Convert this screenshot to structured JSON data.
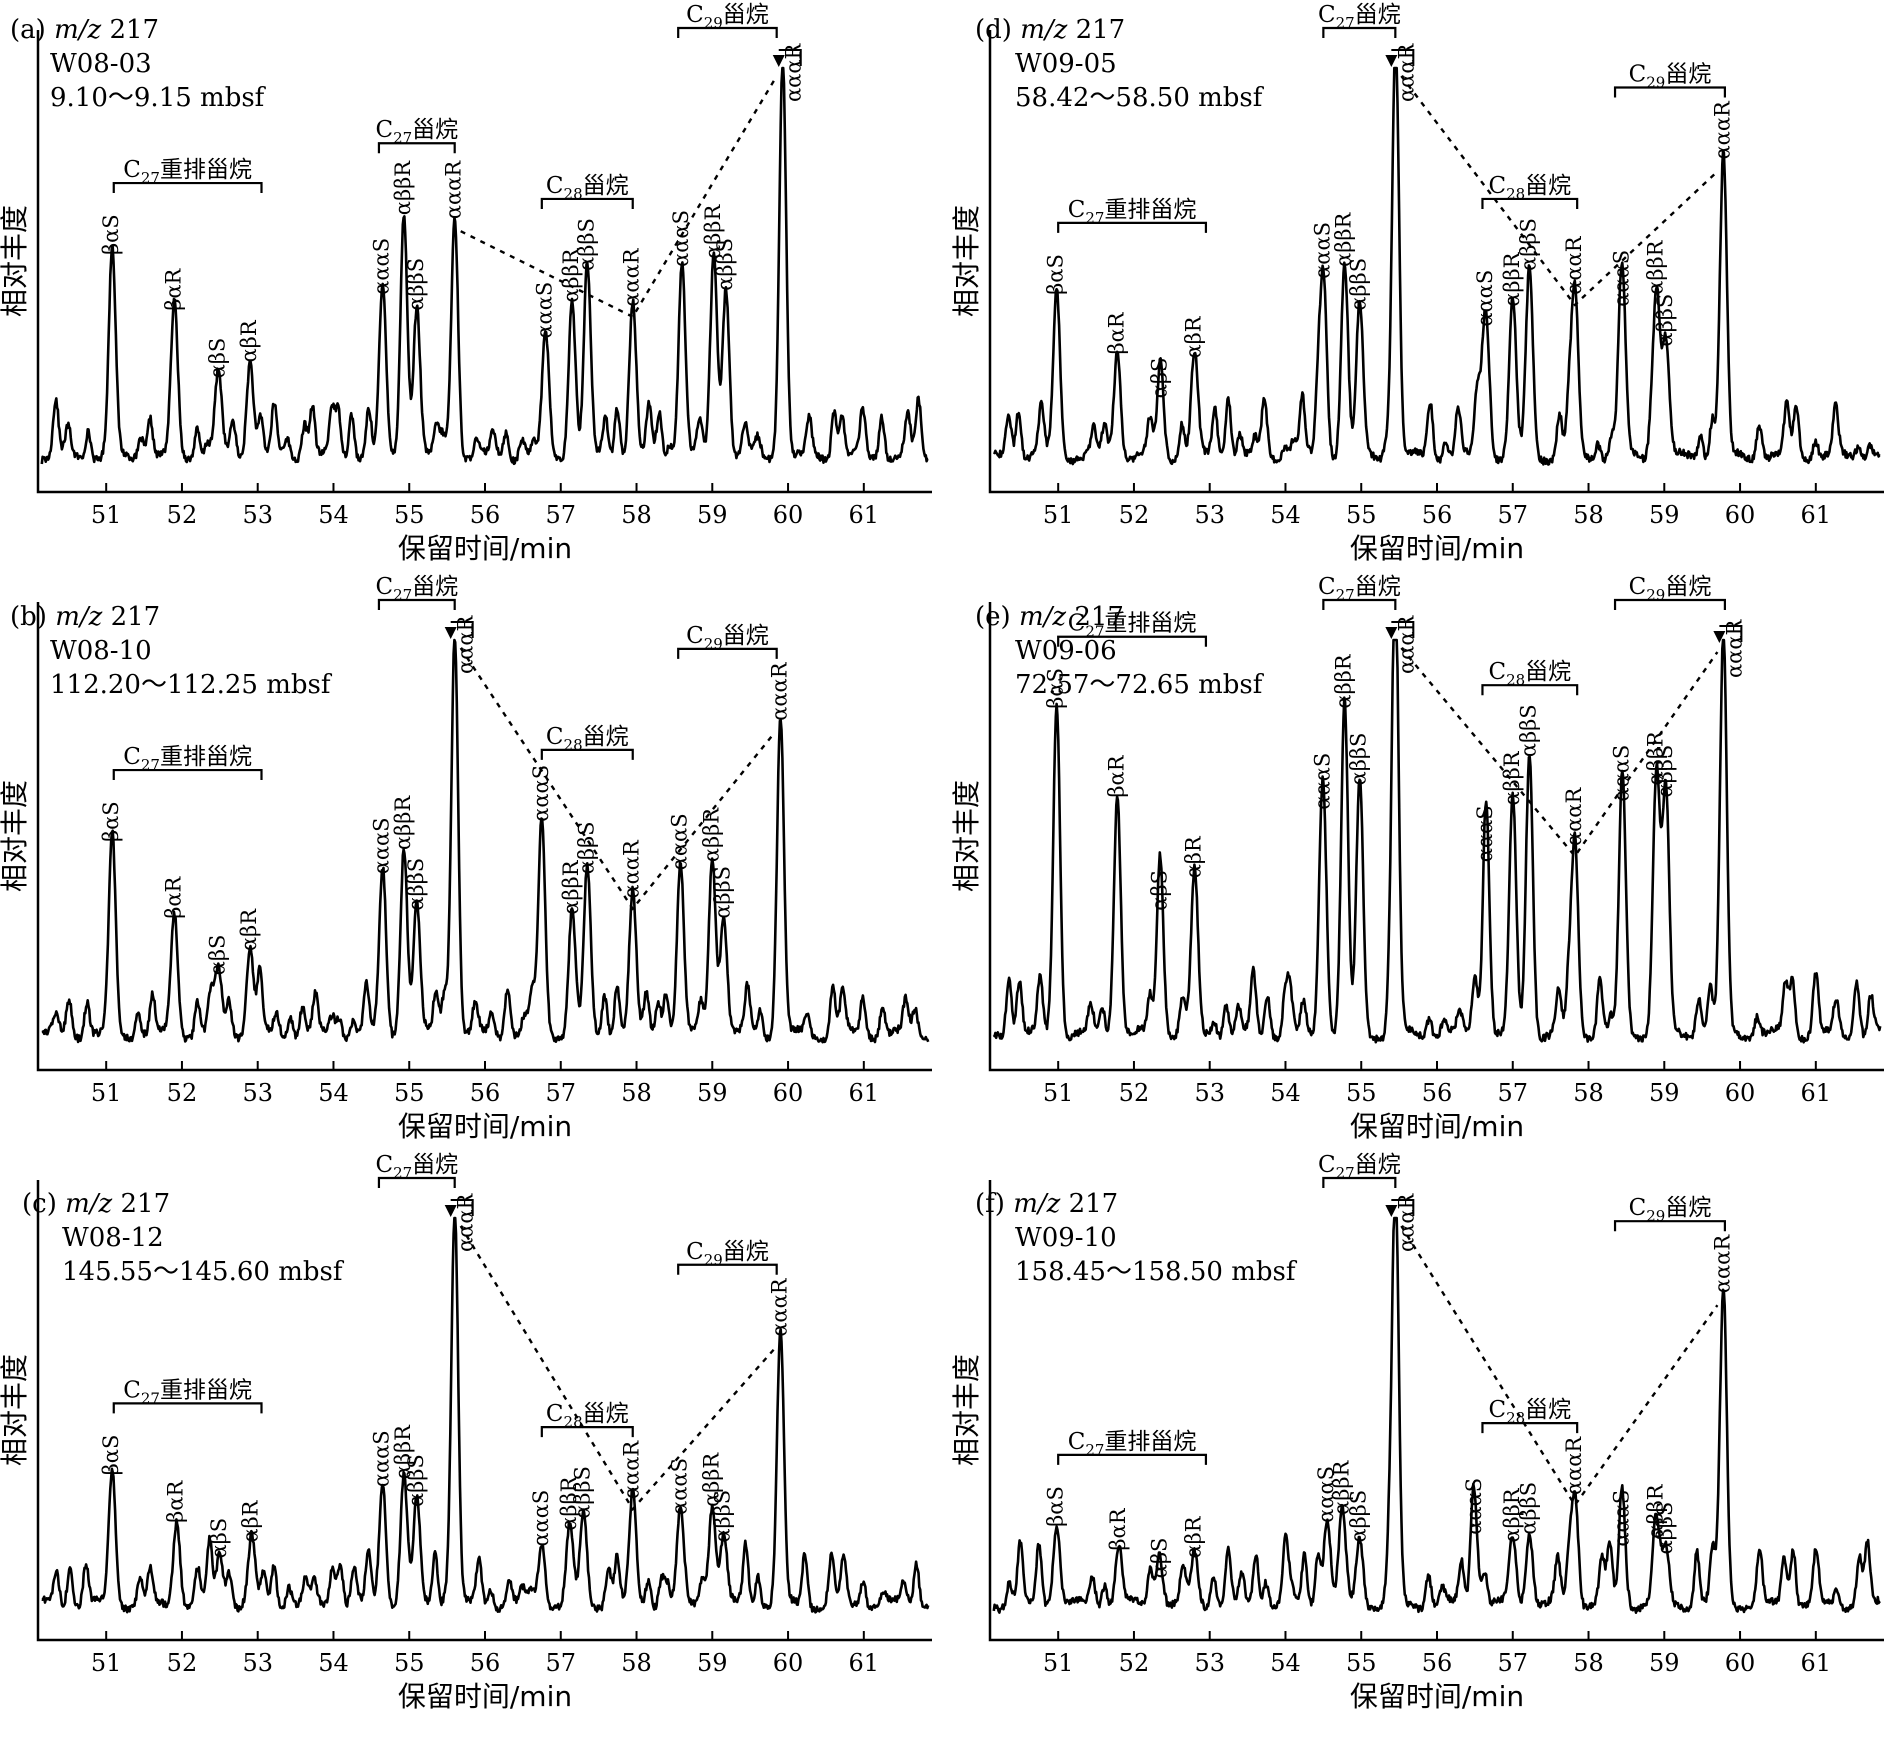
{
  "chart_data": [
    {
      "type": "line",
      "panel_label": "(a)",
      "ion": "m/z 217",
      "sample": "W08-03",
      "depth": "9.10～9.15 mbsf",
      "xlabel": "保留时间/min",
      "ylabel": "相对丰度",
      "xlim": [
        50.1,
        61.9
      ],
      "ylim": [
        0,
        100
      ],
      "xticks": [
        51,
        52,
        53,
        54,
        55,
        56,
        57,
        58,
        59,
        60,
        61
      ],
      "peaks": [
        {
          "label": "βαS",
          "x": 51.08,
          "y": 52
        },
        {
          "label": "βαR",
          "x": 51.9,
          "y": 38
        },
        {
          "label": "αβS",
          "x": 52.48,
          "y": 21
        },
        {
          "label": "αβR",
          "x": 52.9,
          "y": 25
        },
        {
          "label": "αααS",
          "x": 54.65,
          "y": 42
        },
        {
          "label": "αββR",
          "x": 54.93,
          "y": 62
        },
        {
          "label": "αββS",
          "x": 55.1,
          "y": 38
        },
        {
          "label": "αααR",
          "x": 55.6,
          "y": 61
        },
        {
          "label": "αααS",
          "x": 56.8,
          "y": 31
        },
        {
          "label": "αββR",
          "x": 57.15,
          "y": 40
        },
        {
          "label": "αββS",
          "x": 57.35,
          "y": 48
        },
        {
          "label": "αααR",
          "x": 57.95,
          "y": 39
        },
        {
          "label": "αααS",
          "x": 58.6,
          "y": 49
        },
        {
          "label": "αββR",
          "x": 59.02,
          "y": 51
        },
        {
          "label": "αββS",
          "x": 59.18,
          "y": 43
        },
        {
          "label": "αααR",
          "x": 59.93,
          "y": 100
        }
      ],
      "groups": [
        {
          "label": "C27重排甾烷",
          "sub": "27",
          "x": [
            51.1,
            53.05
          ]
        },
        {
          "label": "C27甾烷",
          "sub": "27",
          "x": [
            54.6,
            55.6
          ]
        },
        {
          "label": "C28甾烷",
          "sub": "28",
          "x": [
            56.75,
            57.95
          ]
        },
        {
          "label": "C29甾烷",
          "sub": "29",
          "x": [
            58.55,
            59.85
          ]
        }
      ]
    },
    {
      "type": "line",
      "panel_label": "(b)",
      "ion": "m/z 217",
      "sample": "W08-10",
      "depth": "112.20～112.25 mbsf",
      "xlabel": "保留时间/min",
      "ylabel": "相对丰度",
      "xlim": [
        50.1,
        61.9
      ],
      "ylim": [
        0,
        100
      ],
      "xticks": [
        51,
        52,
        53,
        54,
        55,
        56,
        57,
        58,
        59,
        60,
        61
      ],
      "peaks": [
        {
          "label": "βαS",
          "x": 51.08,
          "y": 49
        },
        {
          "label": "βαR",
          "x": 51.9,
          "y": 30
        },
        {
          "label": "αβS",
          "x": 52.48,
          "y": 16
        },
        {
          "label": "αβR",
          "x": 52.9,
          "y": 22
        },
        {
          "label": "αααS",
          "x": 54.65,
          "y": 41
        },
        {
          "label": "αββR",
          "x": 54.93,
          "y": 47
        },
        {
          "label": "αββS",
          "x": 55.1,
          "y": 32
        },
        {
          "label": "αααR",
          "x": 55.6,
          "y": 100
        },
        {
          "label": "αααS",
          "x": 56.75,
          "y": 54
        },
        {
          "label": "αββR",
          "x": 57.15,
          "y": 31
        },
        {
          "label": "αββS",
          "x": 57.35,
          "y": 41
        },
        {
          "label": "αααR",
          "x": 57.95,
          "y": 35
        },
        {
          "label": "αααS",
          "x": 58.58,
          "y": 42
        },
        {
          "label": "αββR",
          "x": 59.0,
          "y": 44
        },
        {
          "label": "αββS",
          "x": 59.15,
          "y": 30
        },
        {
          "label": "αααR",
          "x": 59.9,
          "y": 79
        }
      ],
      "groups": [
        {
          "label": "C27重排甾烷",
          "sub": "27",
          "x": [
            51.1,
            53.05
          ]
        },
        {
          "label": "C27甾烷",
          "sub": "27",
          "x": [
            54.6,
            55.6
          ]
        },
        {
          "label": "C28甾烷",
          "sub": "28",
          "x": [
            56.75,
            57.95
          ]
        },
        {
          "label": "C29甾烷",
          "sub": "29",
          "x": [
            58.55,
            59.85
          ]
        }
      ]
    },
    {
      "type": "line",
      "panel_label": "(c)",
      "ion": "m/z 217",
      "sample": "W08-12",
      "depth": "145.55～145.60 mbsf",
      "xlabel": "保留时间/min",
      "ylabel": "相对丰度",
      "xlim": [
        50.1,
        61.9
      ],
      "ylim": [
        0,
        100
      ],
      "xticks": [
        51,
        52,
        53,
        54,
        55,
        56,
        57,
        58,
        59,
        60,
        61
      ],
      "peaks": [
        {
          "label": "βαS",
          "x": 51.08,
          "y": 34
        },
        {
          "label": "βαR",
          "x": 51.93,
          "y": 22
        },
        {
          "label": "αβS",
          "x": 52.5,
          "y": 13
        },
        {
          "label": "αβR",
          "x": 52.92,
          "y": 17
        },
        {
          "label": "αααS",
          "x": 54.65,
          "y": 31
        },
        {
          "label": "αββR",
          "x": 54.93,
          "y": 33
        },
        {
          "label": "αββS",
          "x": 55.1,
          "y": 26
        },
        {
          "label": "αααR",
          "x": 55.6,
          "y": 100
        },
        {
          "label": "αααS",
          "x": 56.75,
          "y": 16
        },
        {
          "label": "αββR",
          "x": 57.12,
          "y": 20
        },
        {
          "label": "αββS",
          "x": 57.3,
          "y": 23
        },
        {
          "label": "αααR",
          "x": 57.95,
          "y": 28
        },
        {
          "label": "αααS",
          "x": 58.58,
          "y": 24
        },
        {
          "label": "αββR",
          "x": 59.0,
          "y": 26
        },
        {
          "label": "αββS",
          "x": 59.15,
          "y": 17
        },
        {
          "label": "αααR",
          "x": 59.9,
          "y": 69
        }
      ],
      "groups": [
        {
          "label": "C27重排甾烷",
          "sub": "27",
          "x": [
            51.1,
            53.05
          ]
        },
        {
          "label": "C27甾烷",
          "sub": "27",
          "x": [
            54.6,
            55.6
          ]
        },
        {
          "label": "C28甾烷",
          "sub": "28",
          "x": [
            56.75,
            57.95
          ]
        },
        {
          "label": "C29甾烷",
          "sub": "29",
          "x": [
            58.55,
            59.85
          ]
        }
      ]
    },
    {
      "type": "line",
      "panel_label": "(d)",
      "ion": "m/z 217",
      "sample": "W09-05",
      "depth": "58.42～58.50 mbsf",
      "xlabel": "保留时间/min",
      "ylabel": "相对丰度",
      "xlim": [
        50.1,
        61.9
      ],
      "ylim": [
        0,
        100
      ],
      "xticks": [
        51,
        52,
        53,
        54,
        55,
        56,
        57,
        58,
        59,
        60,
        61
      ],
      "peaks": [
        {
          "label": "βαS",
          "x": 50.98,
          "y": 42
        },
        {
          "label": "βαR",
          "x": 51.78,
          "y": 27
        },
        {
          "label": "αβS",
          "x": 52.35,
          "y": 16
        },
        {
          "label": "αβR",
          "x": 52.8,
          "y": 26
        },
        {
          "label": "αααS",
          "x": 54.5,
          "y": 46
        },
        {
          "label": "αββR",
          "x": 54.78,
          "y": 49
        },
        {
          "label": "αββS",
          "x": 54.98,
          "y": 38
        },
        {
          "label": "αααR",
          "x": 55.45,
          "y": 100
        },
        {
          "label": "αααS",
          "x": 56.65,
          "y": 34
        },
        {
          "label": "αββR",
          "x": 57.0,
          "y": 39
        },
        {
          "label": "αββS",
          "x": 57.22,
          "y": 48
        },
        {
          "label": "αααR",
          "x": 57.82,
          "y": 42
        },
        {
          "label": "αααS",
          "x": 58.45,
          "y": 39
        },
        {
          "label": "αββR",
          "x": 58.9,
          "y": 42
        },
        {
          "label": "αββS",
          "x": 59.02,
          "y": 29
        },
        {
          "label": "αααR",
          "x": 59.78,
          "y": 76
        }
      ],
      "groups": [
        {
          "label": "C27重排甾烷",
          "sub": "27",
          "x": [
            51.0,
            52.95
          ]
        },
        {
          "label": "C27甾烷",
          "sub": "27",
          "x": [
            54.5,
            55.45
          ]
        },
        {
          "label": "C28甾烷",
          "sub": "28",
          "x": [
            56.6,
            57.85
          ]
        },
        {
          "label": "C29甾烷",
          "sub": "29",
          "x": [
            58.35,
            59.8
          ]
        }
      ]
    },
    {
      "type": "line",
      "panel_label": "(e)",
      "ion": "m/z 217",
      "sample": "W09-06",
      "depth": "72.57～72.65 mbsf",
      "xlabel": "保留时间/min",
      "ylabel": "相对丰度",
      "xlim": [
        50.1,
        61.9
      ],
      "ylim": [
        0,
        100
      ],
      "xticks": [
        51,
        52,
        53,
        54,
        55,
        56,
        57,
        58,
        59,
        60,
        61
      ],
      "peaks": [
        {
          "label": "βαS",
          "x": 50.98,
          "y": 82
        },
        {
          "label": "βαR",
          "x": 51.78,
          "y": 60
        },
        {
          "label": "αβS",
          "x": 52.35,
          "y": 32
        },
        {
          "label": "αβR",
          "x": 52.8,
          "y": 40
        },
        {
          "label": "αααS",
          "x": 54.5,
          "y": 57
        },
        {
          "label": "αββR",
          "x": 54.78,
          "y": 82
        },
        {
          "label": "αββS",
          "x": 54.98,
          "y": 63
        },
        {
          "label": "αααR",
          "x": 55.45,
          "y": 100
        },
        {
          "label": "αααS",
          "x": 56.65,
          "y": 44
        },
        {
          "label": "αββR",
          "x": 57.0,
          "y": 58
        },
        {
          "label": "αββS",
          "x": 57.22,
          "y": 70
        },
        {
          "label": "αααR",
          "x": 57.82,
          "y": 48
        },
        {
          "label": "αααS",
          "x": 58.45,
          "y": 59
        },
        {
          "label": "αββR",
          "x": 58.9,
          "y": 63
        },
        {
          "label": "αββS",
          "x": 59.02,
          "y": 60
        },
        {
          "label": "αααR",
          "x": 59.78,
          "y": 99
        }
      ],
      "groups": [
        {
          "label": "C27重排甾烷",
          "sub": "27",
          "x": [
            51.0,
            52.95
          ]
        },
        {
          "label": "C27甾烷",
          "sub": "27",
          "x": [
            54.5,
            55.45
          ]
        },
        {
          "label": "C28甾烷",
          "sub": "28",
          "x": [
            56.6,
            57.85
          ]
        },
        {
          "label": "C29甾烷",
          "sub": "29",
          "x": [
            58.35,
            59.8
          ]
        }
      ]
    },
    {
      "type": "line",
      "panel_label": "(f)",
      "ion": "m/z 217",
      "sample": "W09-10",
      "depth": "158.45～158.50 mbsf",
      "xlabel": "保留时间/min",
      "ylabel": "相对丰度",
      "xlim": [
        50.1,
        61.9
      ],
      "ylim": [
        0,
        100
      ],
      "xticks": [
        51,
        52,
        53,
        54,
        55,
        56,
        57,
        58,
        59,
        60,
        61
      ],
      "peaks": [
        {
          "label": "βαS",
          "x": 50.98,
          "y": 21
        },
        {
          "label": "βαR",
          "x": 51.8,
          "y": 15
        },
        {
          "label": "αβS",
          "x": 52.35,
          "y": 8
        },
        {
          "label": "αβR",
          "x": 52.8,
          "y": 13
        },
        {
          "label": "αααS",
          "x": 54.55,
          "y": 22
        },
        {
          "label": "αββR",
          "x": 54.75,
          "y": 24
        },
        {
          "label": "αββS",
          "x": 54.98,
          "y": 17
        },
        {
          "label": "αααR",
          "x": 55.45,
          "y": 100
        },
        {
          "label": "αααS",
          "x": 56.5,
          "y": 19
        },
        {
          "label": "αββR",
          "x": 57.0,
          "y": 17
        },
        {
          "label": "αββS",
          "x": 57.22,
          "y": 19
        },
        {
          "label": "αααR",
          "x": 57.82,
          "y": 29
        },
        {
          "label": "αααS",
          "x": 58.45,
          "y": 16
        },
        {
          "label": "αββR",
          "x": 58.9,
          "y": 18
        },
        {
          "label": "αββS",
          "x": 59.02,
          "y": 14
        },
        {
          "label": "αααR",
          "x": 59.78,
          "y": 80
        }
      ],
      "groups": [
        {
          "label": "C27重排甾烷",
          "sub": "27",
          "x": [
            51.0,
            52.95
          ]
        },
        {
          "label": "C27甾烷",
          "sub": "27",
          "x": [
            54.5,
            55.45
          ]
        },
        {
          "label": "C28甾烷",
          "sub": "28",
          "x": [
            56.6,
            57.85
          ]
        },
        {
          "label": "C29甾烷",
          "sub": "29",
          "x": [
            58.35,
            59.8
          ]
        }
      ]
    }
  ]
}
